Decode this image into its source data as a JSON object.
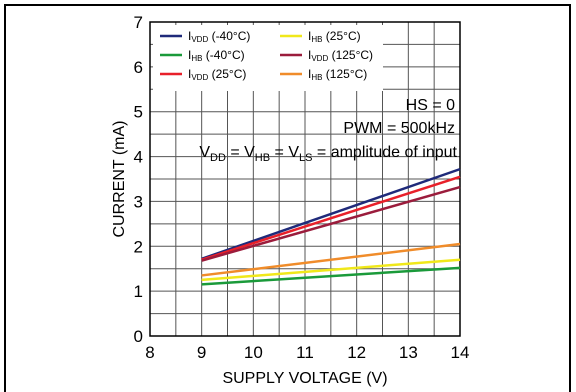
{
  "chart_data": {
    "type": "line",
    "title": "",
    "xlabel": "SUPPLY VOLTAGE (V)",
    "ylabel": "CURRENT (mA)",
    "xlim": [
      8,
      14
    ],
    "ylim": [
      0,
      7
    ],
    "xticks": [
      "8",
      "9",
      "10",
      "11",
      "12",
      "13",
      "14"
    ],
    "yticks": [
      "0",
      "1",
      "2",
      "3",
      "4",
      "5",
      "6",
      "7"
    ],
    "grid": true,
    "legend_position": "top-left",
    "annotations": {
      "hs": "HS = 0",
      "pwm": "PWM = 500kHz",
      "cond_main": "V",
      "cond_sub1": "DD",
      "cond_eq1": " = V",
      "cond_sub2": "HB",
      "cond_eq2": " = V",
      "cond_sub3": "LS",
      "cond_rest": " = amplitude of input"
    },
    "series": [
      {
        "name": "IVDD (-40°C)",
        "legend_main": "I",
        "legend_sub": "VDD",
        "legend_suffix": " (-40°C)",
        "color": "#1f2a7a",
        "x": [
          9,
          14
        ],
        "values": [
          1.72,
          3.72
        ]
      },
      {
        "name": "IHB (-40°C)",
        "legend_main": "I",
        "legend_sub": "HB",
        "legend_suffix": " (-40°C)",
        "color": "#1a9a3a",
        "x": [
          9,
          14
        ],
        "values": [
          1.15,
          1.52
        ]
      },
      {
        "name": "IVDD (25°C)",
        "legend_main": "I",
        "legend_sub": "VDD",
        "legend_suffix": " (25°C)",
        "color": "#e8202a",
        "x": [
          9,
          14
        ],
        "values": [
          1.7,
          3.55
        ]
      },
      {
        "name": "IHB (25°C)",
        "legend_main": "I",
        "legend_sub": "HB",
        "legend_suffix": " (25°C)",
        "color": "#f0e81a",
        "x": [
          9,
          14
        ],
        "values": [
          1.25,
          1.7
        ]
      },
      {
        "name": "IVDD (125°C)",
        "legend_main": "I",
        "legend_sub": "VDD",
        "legend_suffix": " (125°C)",
        "color": "#9b1c3c",
        "x": [
          9,
          14
        ],
        "values": [
          1.68,
          3.32
        ]
      },
      {
        "name": "IHB (125°C)",
        "legend_main": "I",
        "legend_sub": "HB",
        "legend_suffix": " (125°C)",
        "color": "#f08c2a",
        "x": [
          9,
          14
        ],
        "values": [
          1.35,
          2.05
        ]
      }
    ]
  }
}
